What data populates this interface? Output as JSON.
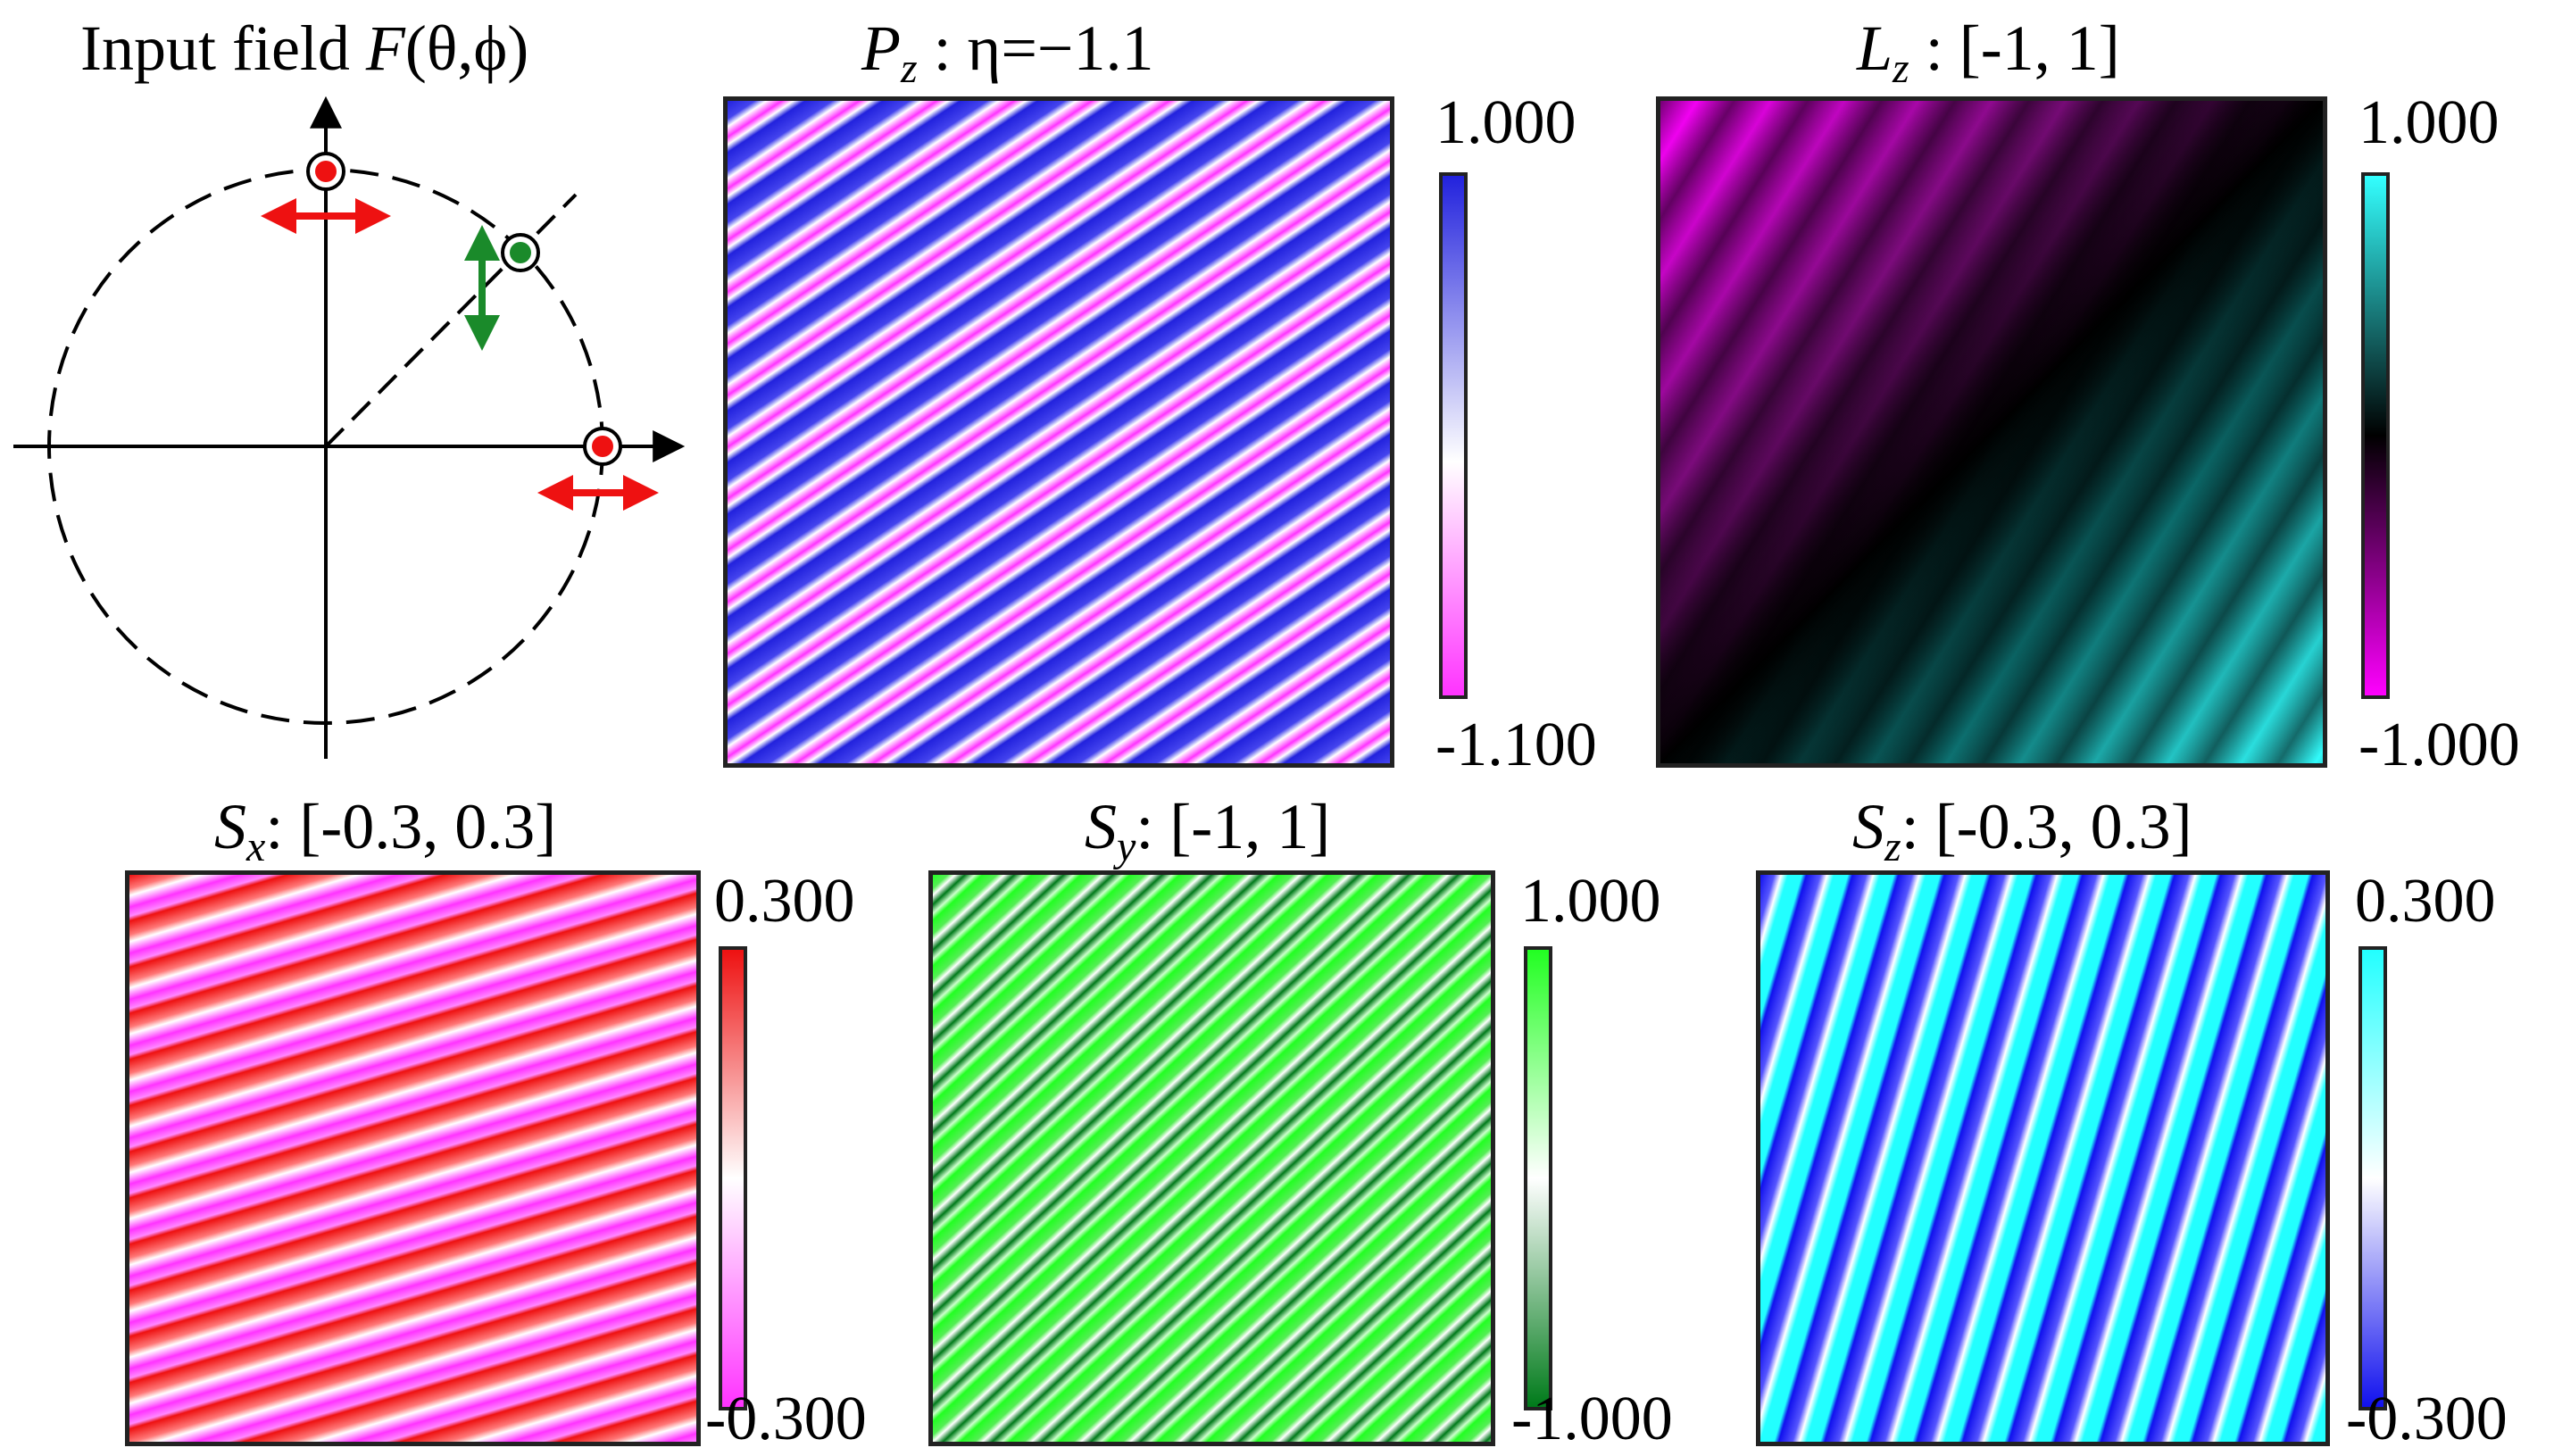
{
  "figure": {
    "input_field": {
      "title_text": "Input field ",
      "title_func": "F",
      "title_args": "(θ,ϕ)"
    },
    "panels": [
      {
        "id": "Pz",
        "sym": "P",
        "sub": "z",
        "rest": " : η=−1.1",
        "cbar_top": "1.000",
        "cbar_bottom": "-1.100",
        "colors": [
          "#ff33ff",
          "#ffffff",
          "#2222dd"
        ]
      },
      {
        "id": "Lz",
        "sym": "L",
        "sub": "z",
        "rest": " :  [-1, 1]",
        "cbar_top": "1.000",
        "cbar_bottom": "-1.000",
        "colors": [
          "#ff00ff",
          "#000000",
          "#33ffff"
        ]
      },
      {
        "id": "Sx",
        "sym": "S",
        "sub": "x",
        "rest": ": [-0.3, 0.3]",
        "cbar_top": "0.300",
        "cbar_bottom": "-0.300",
        "colors": [
          "#ff33ff",
          "#ffffff",
          "#ee1111"
        ]
      },
      {
        "id": "Sy",
        "sym": "S",
        "sub": "y",
        "rest": ": [-1, 1]",
        "cbar_top": "1.000",
        "cbar_bottom": "-1.000",
        "colors": [
          "#007a1a",
          "#ffffff",
          "#22ff22"
        ]
      },
      {
        "id": "Sz",
        "sym": "S",
        "sub": "z",
        "rest": ": [-0.3, 0.3]",
        "cbar_top": "0.300",
        "cbar_bottom": "-0.300",
        "colors": [
          "#1111ee",
          "#ffffff",
          "#22ffff"
        ]
      }
    ],
    "marker_colors": {
      "red": "#ee1111",
      "green": "#1a8a2a"
    }
  }
}
